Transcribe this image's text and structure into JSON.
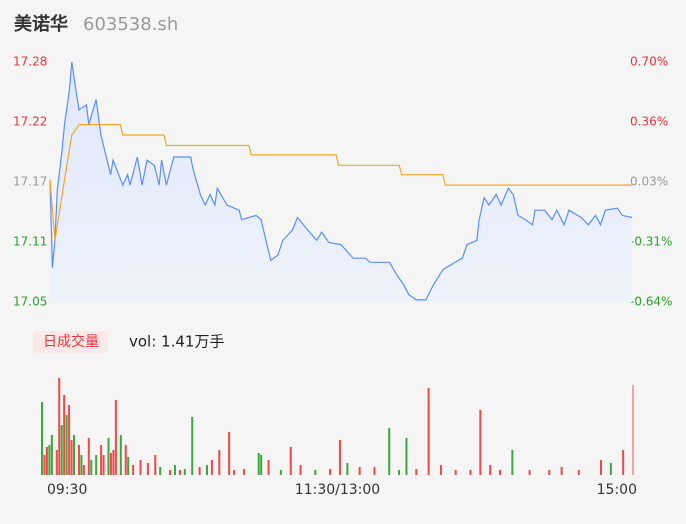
{
  "header": {
    "title": "美诺华",
    "code": "603538.sh"
  },
  "chart_data": [
    {
      "type": "line",
      "ylim": [
        17.05,
        17.28
      ],
      "yticks": [
        {
          "value": 17.05,
          "label": "17.05"
        },
        {
          "value": 17.1075,
          "label": "17.11"
        },
        {
          "value": 17.165,
          "label": "17.17"
        },
        {
          "value": 17.2225,
          "label": "17.22"
        },
        {
          "value": 17.28,
          "label": "17.28"
        }
      ],
      "y2lim": [
        -0.64,
        0.7
      ],
      "y2ticks": [
        {
          "value": -0.64,
          "label": "-0.64%"
        },
        {
          "value": -0.305,
          "label": "-0.31%"
        },
        {
          "value": 0.03,
          "label": "0.03%"
        },
        {
          "value": 0.365,
          "label": "0.36%"
        },
        {
          "value": 0.7,
          "label": "0.70%"
        }
      ],
      "xlim": [
        0,
        240
      ],
      "tick_colors": [
        "#2ca02c",
        "#999999",
        "#e8373e"
      ],
      "series": [
        {
          "color": "#5b8ff9",
          "x": [
            0,
            1,
            2,
            3,
            5,
            6,
            8,
            9,
            11,
            12,
            15,
            16,
            19,
            21,
            23,
            25,
            26,
            30,
            32,
            33,
            36,
            38,
            40,
            43,
            45,
            46,
            48,
            51,
            58,
            59,
            62,
            64,
            66,
            68,
            69,
            73,
            78,
            79,
            85,
            87,
            91,
            94,
            96,
            100,
            102,
            107,
            110,
            112,
            115,
            120,
            125,
            130,
            132,
            137,
            140,
            143,
            146,
            148,
            151,
            155,
            158,
            162,
            167,
            170,
            172,
            176,
            177,
            179,
            181,
            184,
            186,
            189,
            191,
            193,
            196,
            199,
            200,
            204,
            207,
            209,
            212,
            214,
            219,
            222,
            225,
            227,
            229,
            234,
            236,
            240
          ],
          "values": [
            17.167,
            17.083,
            17.109,
            17.157,
            17.196,
            17.22,
            17.253,
            17.28,
            17.248,
            17.234,
            17.239,
            17.22,
            17.244,
            17.21,
            17.191,
            17.172,
            17.186,
            17.162,
            17.172,
            17.162,
            17.189,
            17.162,
            17.186,
            17.181,
            17.162,
            17.186,
            17.162,
            17.189,
            17.189,
            17.177,
            17.153,
            17.143,
            17.153,
            17.143,
            17.159,
            17.143,
            17.138,
            17.129,
            17.133,
            17.129,
            17.09,
            17.095,
            17.109,
            17.119,
            17.131,
            17.117,
            17.109,
            17.117,
            17.107,
            17.105,
            17.092,
            17.092,
            17.088,
            17.088,
            17.088,
            17.076,
            17.066,
            17.057,
            17.052,
            17.052,
            17.066,
            17.081,
            17.088,
            17.092,
            17.105,
            17.109,
            17.129,
            17.15,
            17.143,
            17.153,
            17.143,
            17.159,
            17.153,
            17.133,
            17.129,
            17.124,
            17.138,
            17.138,
            17.129,
            17.138,
            17.124,
            17.138,
            17.131,
            17.124,
            17.133,
            17.124,
            17.138,
            17.14,
            17.133,
            17.131
          ]
        },
        {
          "color": "#f5a623",
          "x": [
            0,
            2,
            4,
            6,
            8,
            9,
            12,
            29,
            30,
            47,
            48,
            82,
            83,
            118,
            119,
            144,
            145,
            162,
            163,
            240
          ],
          "values": [
            17.167,
            17.109,
            17.138,
            17.167,
            17.196,
            17.21,
            17.22,
            17.22,
            17.21,
            17.21,
            17.2,
            17.2,
            17.191,
            17.191,
            17.181,
            17.181,
            17.172,
            17.172,
            17.162,
            17.162
          ]
        }
      ]
    },
    {
      "type": "bar",
      "title": "日成交量",
      "subtitle": "vol: 1.41万手",
      "xlim": [
        0,
        240
      ],
      "xticks": [
        {
          "value": 0,
          "label": "09:30"
        },
        {
          "value": 120,
          "label": "11:30/13:00"
        },
        {
          "value": 240,
          "label": "15:00"
        }
      ],
      "ylim": [
        0,
        100
      ],
      "x": [
        0,
        1,
        2,
        3,
        4,
        6,
        7,
        8,
        9,
        10,
        11,
        12,
        13,
        15,
        16,
        17,
        19,
        20,
        22,
        24,
        25,
        27,
        28,
        29,
        30,
        32,
        34,
        35,
        37,
        40,
        43,
        46,
        48,
        52,
        54,
        56,
        58,
        61,
        64,
        67,
        69,
        72,
        76,
        78,
        82,
        88,
        89,
        92,
        97,
        101,
        105,
        111,
        117,
        121,
        124,
        129,
        135,
        141,
        145,
        148,
        152,
        157,
        162,
        168,
        174,
        178,
        182,
        186,
        191,
        198,
        206,
        211,
        218,
        227,
        231,
        236,
        240
      ],
      "values": [
        73,
        20,
        28,
        30,
        40,
        25,
        97,
        50,
        80,
        60,
        70,
        35,
        40,
        30,
        20,
        10,
        37,
        15,
        20,
        30,
        20,
        37,
        22,
        25,
        75,
        40,
        30,
        18,
        10,
        15,
        12,
        20,
        8,
        5,
        10,
        5,
        6,
        58,
        8,
        10,
        15,
        25,
        43,
        5,
        6,
        22,
        20,
        15,
        5,
        28,
        10,
        5,
        6,
        35,
        12,
        8,
        8,
        47,
        5,
        37,
        6,
        87,
        10,
        5,
        5,
        65,
        10,
        5,
        25,
        5,
        5,
        8,
        5,
        15,
        12,
        25,
        90
      ],
      "colors": [
        "#3aa83a",
        "#f04848",
        "#f04848",
        "#3aa83a",
        "#3aa83a",
        "#f04848",
        "#f04848",
        "#3aa83a",
        "#f04848",
        "#3aa83a",
        "#f04848",
        "#f04848",
        "#3aa83a",
        "#f04848",
        "#3aa83a",
        "#f04848",
        "#f04848",
        "#3aa83a",
        "#3aa83a",
        "#f04848",
        "#f04848",
        "#3aa83a",
        "#f04848",
        "#f04848",
        "#f04848",
        "#3aa83a",
        "#f04848",
        "#3aa83a",
        "#f04848",
        "#f04848",
        "#f04848",
        "#f04848",
        "#3aa83a",
        "#f04848",
        "#3aa83a",
        "#f04848",
        "#3aa83a",
        "#3aa83a",
        "#f04848",
        "#3aa83a",
        "#f04848",
        "#f04848",
        "#f04848",
        "#f04848",
        "#f04848",
        "#3aa83a",
        "#3aa83a",
        "#f04848",
        "#3aa83a",
        "#f04848",
        "#f04848",
        "#3aa83a",
        "#f04848",
        "#f04848",
        "#3aa83a",
        "#f04848",
        "#f04848",
        "#3aa83a",
        "#3aa83a",
        "#3aa83a",
        "#f04848",
        "#f04848",
        "#f04848",
        "#f04848",
        "#f04848",
        "#f04848",
        "#f04848",
        "#f04848",
        "#3aa83a",
        "#f04848",
        "#f04848",
        "#f04848",
        "#f04848",
        "#f04848",
        "#3aa83a",
        "#f04848",
        "#f6a0a0"
      ]
    }
  ]
}
